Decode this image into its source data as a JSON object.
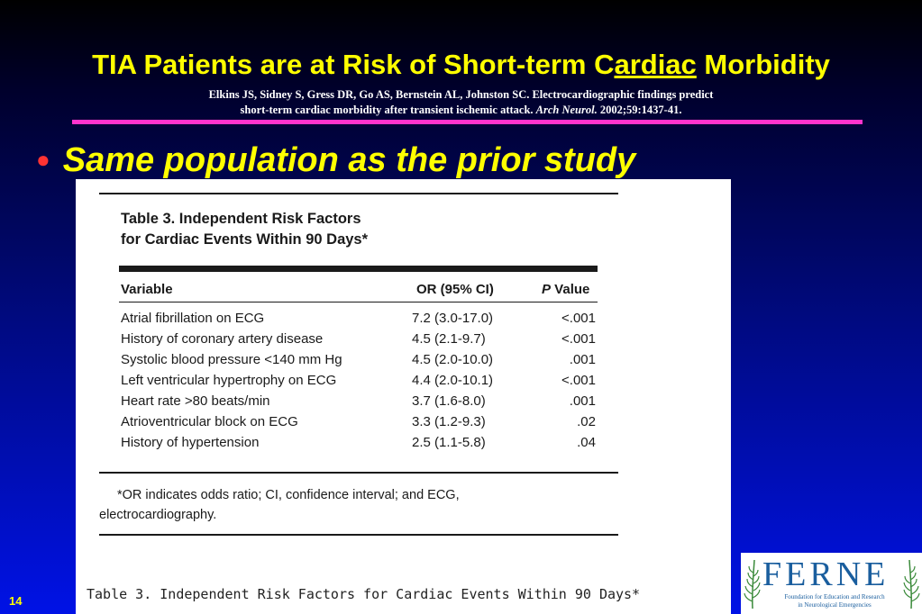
{
  "slide": {
    "title_part1": "TIA Patients are at Risk of Short-term C",
    "title_underlined": "ardiac",
    "title_part2": " Morbidity",
    "citation_line1": "Elkins JS, Sidney S, Gress DR, Go AS, Bernstein AL, Johnston SC. Electrocardiographic findings predict",
    "citation_line2_pre": "short-term cardiac morbidity after transient ischemic attack. ",
    "citation_journal": "Arch Neurol.",
    "citation_line2_post": " 2002;59:1437-41.",
    "bullet": "Same population as the prior study",
    "slide_number": "14"
  },
  "colors": {
    "title": "#ffff00",
    "divider": "#ff33cc",
    "bullet_dot": "#ff3333",
    "logo": "#1a5e9e"
  },
  "table": {
    "caption_line1": "Table 3. Independent Risk Factors",
    "caption_line2": "for Cardiac Events Within 90 Days*",
    "headers": {
      "variable": "Variable",
      "or": "OR (95% CI)",
      "p_italic": "P",
      "p_rest": " Value"
    },
    "rows": [
      {
        "variable": "Atrial fibrillation on ECG",
        "or": "7.2 (3.0-17.0)",
        "p": "<.001"
      },
      {
        "variable": "History of coronary artery disease",
        "or": "4.5 (2.1-9.7)",
        "p": "<.001"
      },
      {
        "variable": "Systolic blood pressure <140 mm Hg",
        "or": "4.5 (2.0-10.0)",
        "p": ".001"
      },
      {
        "variable": "Left ventricular hypertrophy on ECG",
        "or": "4.4 (2.0-10.1)",
        "p": "<.001"
      },
      {
        "variable": "Heart rate >80 beats/min",
        "or": "3.7 (1.6-8.0)",
        "p": ".001"
      },
      {
        "variable": "Atrioventricular block on ECG",
        "or": "3.3 (1.2-9.3)",
        "p": ".02"
      },
      {
        "variable": "History of hypertension",
        "or": "2.5 (1.1-5.8)",
        "p": ".04"
      }
    ],
    "footnote_line1": "*OR indicates odds ratio; CI, confidence interval; and ECG,",
    "footnote_line2": "electrocardiography.",
    "caption_repeat": "Table 3. Independent Risk Factors for Cardiac Events Within 90 Days*"
  },
  "logo": {
    "letters": [
      "F",
      "E",
      "R",
      "N",
      "E"
    ],
    "subtitle_line1": "Foundation for Education and Research",
    "subtitle_line2": "in Neurological Emergencies"
  }
}
